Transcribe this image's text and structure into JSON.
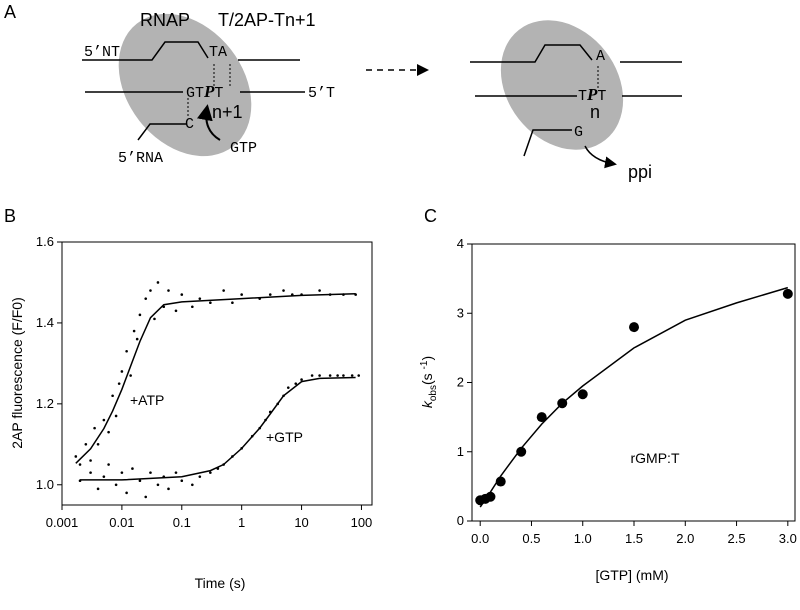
{
  "panels": [
    "A",
    "B",
    "C"
  ],
  "diagram": {
    "left": {
      "rnap": "RNAP",
      "template": "T/2AP-Tn+1",
      "nt5": "5’NT",
      "ta": "TA",
      "gt": "GT",
      "p": "P",
      "t": "T",
      "t5": "5’T",
      "n1": "n+1",
      "c": "C",
      "rna5": "5’RNA",
      "gtp": "GTP"
    },
    "right": {
      "a": "A",
      "t1": "T",
      "p": "P",
      "t2": "T",
      "n": "n",
      "g": "G",
      "ppi": "ppi"
    }
  },
  "chart_data": [
    {
      "type": "scatter",
      "x_label": "Time (s)",
      "y_label": "2AP fluorescence (F/F0)",
      "log_x": true,
      "xlim": [
        0.001,
        150
      ],
      "ylim": [
        0.95,
        1.6
      ],
      "xticks": [
        0.001,
        0.01,
        0.1,
        1,
        10,
        100
      ],
      "yticks": [
        {
          "value": 1,
          "label": "1.0"
        },
        1.2,
        1.4,
        1.6
      ],
      "series": [
        {
          "name": "+ATP",
          "color": "#000000",
          "x": [
            0.0017,
            0.002,
            0.0025,
            0.003,
            0.0035,
            0.004,
            0.005,
            0.006,
            0.007,
            0.008,
            0.009,
            0.01,
            0.012,
            0.014,
            0.016,
            0.018,
            0.02,
            0.025,
            0.03,
            0.035,
            0.04,
            0.05,
            0.06,
            0.08,
            0.1,
            0.15,
            0.2,
            0.3,
            0.5,
            0.7,
            1,
            2,
            3,
            5,
            7,
            10,
            20,
            30,
            50,
            80
          ],
          "values": [
            1.07,
            1.05,
            1.1,
            1.06,
            1.14,
            1.1,
            1.16,
            1.13,
            1.22,
            1.17,
            1.25,
            1.28,
            1.33,
            1.27,
            1.38,
            1.36,
            1.42,
            1.46,
            1.48,
            1.41,
            1.5,
            1.44,
            1.48,
            1.43,
            1.47,
            1.44,
            1.46,
            1.45,
            1.48,
            1.45,
            1.47,
            1.46,
            1.47,
            1.48,
            1.47,
            1.47,
            1.48,
            1.47,
            1.47,
            1.47
          ],
          "fit_x": [
            0.0017,
            0.003,
            0.005,
            0.007,
            0.01,
            0.015,
            0.02,
            0.03,
            0.05,
            0.1,
            1,
            10,
            80
          ],
          "fit_values": [
            1.053,
            1.089,
            1.139,
            1.182,
            1.236,
            1.305,
            1.354,
            1.413,
            1.445,
            1.452,
            1.46,
            1.468,
            1.472
          ]
        },
        {
          "name": "+GTP",
          "color": "#000000",
          "x": [
            0.002,
            0.003,
            0.004,
            0.005,
            0.006,
            0.008,
            0.01,
            0.012,
            0.015,
            0.02,
            0.025,
            0.03,
            0.04,
            0.05,
            0.06,
            0.08,
            0.1,
            0.15,
            0.2,
            0.3,
            0.4,
            0.5,
            0.7,
            1,
            1.5,
            2,
            2.5,
            3,
            4,
            5,
            6,
            8,
            10,
            15,
            20,
            30,
            40,
            50,
            70,
            90
          ],
          "values": [
            1.01,
            1.03,
            0.99,
            1.02,
            1.05,
            1.0,
            1.03,
            0.98,
            1.04,
            1.01,
            0.97,
            1.03,
            1.0,
            1.02,
            0.99,
            1.03,
            1.01,
            1.0,
            1.02,
            1.03,
            1.04,
            1.05,
            1.07,
            1.09,
            1.12,
            1.14,
            1.16,
            1.18,
            1.2,
            1.22,
            1.24,
            1.25,
            1.26,
            1.27,
            1.27,
            1.27,
            1.27,
            1.27,
            1.27,
            1.27
          ],
          "fit_x": [
            0.002,
            0.01,
            0.1,
            0.3,
            0.5,
            1,
            2,
            3,
            5,
            10,
            20,
            80
          ],
          "fit_values": [
            1.012,
            1.012,
            1.02,
            1.035,
            1.05,
            1.09,
            1.14,
            1.175,
            1.22,
            1.255,
            1.263,
            1.265
          ]
        }
      ]
    },
    {
      "type": "scatter",
      "x_label": "[GTP] (mM)",
      "y_label_parts": [
        "k",
        "obs",
        "(s ",
        "-1",
        ")"
      ],
      "annotation": "rGMP:T",
      "xlim": [
        -0.08,
        3.07
      ],
      "ylim": [
        0,
        4
      ],
      "xticks": [
        {
          "value": 0,
          "label": "0.0"
        },
        0.5,
        {
          "value": 1,
          "label": "1.0"
        },
        1.5,
        {
          "value": 2,
          "label": "2.0"
        },
        2.5,
        {
          "value": 3,
          "label": "3.0"
        }
      ],
      "yticks": [
        0,
        1,
        2,
        3,
        4
      ],
      "series": [
        {
          "color": "#000000",
          "x": [
            0,
            0.05,
            0.1,
            0.2,
            0.4,
            0.6,
            0.8,
            1.0,
            1.5,
            3.0
          ],
          "values": [
            0.3,
            0.32,
            0.35,
            0.57,
            1.0,
            1.5,
            1.7,
            1.83,
            2.8,
            3.28
          ],
          "fit_x": [
            0,
            0.1,
            0.2,
            0.4,
            0.6,
            0.8,
            1,
            1.5,
            2,
            2.5,
            3
          ],
          "fit_values": [
            0.2,
            0.42,
            0.65,
            1.05,
            1.4,
            1.7,
            1.95,
            2.5,
            2.9,
            3.15,
            3.37
          ]
        }
      ]
    }
  ]
}
